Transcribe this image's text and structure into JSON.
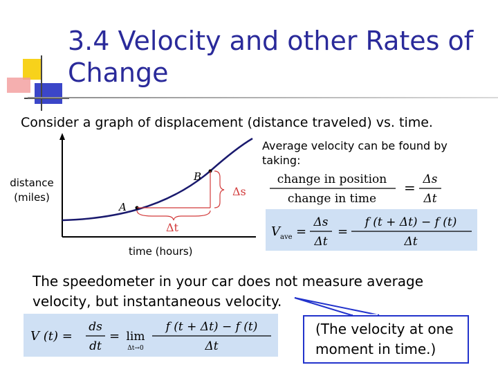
{
  "slide": {
    "title_line1": "3.4 Velocity and other Rates of",
    "title_line2": "Change",
    "subtitle": "Consider a graph of displacement (distance traveled) vs. time."
  },
  "graph": {
    "y_label_line1": "distance",
    "y_label_line2": "(miles)",
    "x_label": "time (hours)",
    "point_a": "A",
    "point_b": "B",
    "delta_s": "Δs",
    "delta_t": "Δt"
  },
  "average": {
    "text": "Average velocity can be found by taking:",
    "ratio_numerator": "change in position",
    "ratio_denominator": "change in time",
    "ds": "Δs",
    "dt": "Δt",
    "v_ave_symbol": "V",
    "v_ave_subscript": "ave",
    "f_diff": "f (t + Δt) − f (t)"
  },
  "speedometer": {
    "text": "The speedometer in your car does not measure average velocity, but instantaneous velocity."
  },
  "instantaneous": {
    "lhs": "V (t) =",
    "ds": "ds",
    "dt": "dt",
    "lim": "lim",
    "lim_sub": "Δt→0",
    "numerator": "f (t + Δt) − f (t)",
    "denominator": "Δt"
  },
  "callout": {
    "text": "(The velocity at one moment in time.)"
  },
  "colors": {
    "title": "#2a2a9a",
    "box": "#cfe0f4",
    "callout_border": "#2233cc",
    "curve": "#1a1a6e"
  }
}
